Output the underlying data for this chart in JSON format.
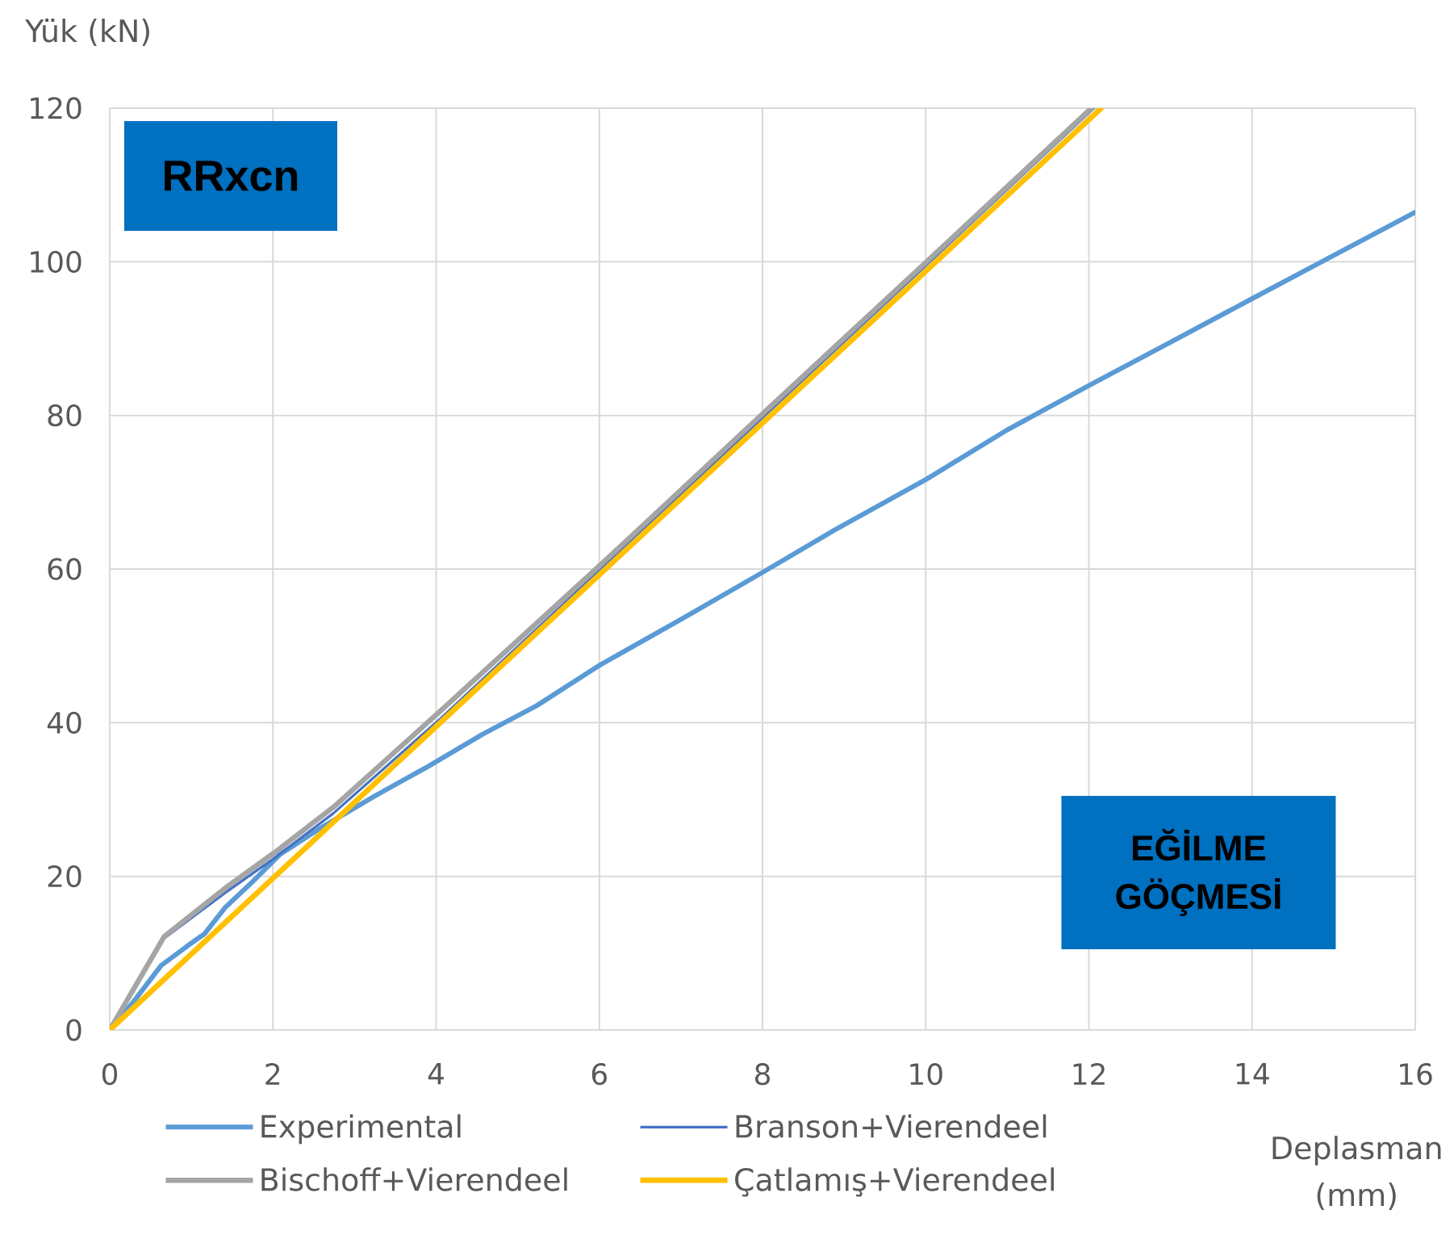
{
  "chart_data": {
    "type": "line",
    "xlabel": "Deplasman (mm)",
    "ylabel": "Yük (kN)",
    "annotations": [
      "RRxcn",
      "EĞİLME GÖÇMESİ"
    ],
    "xlim": [
      0,
      16
    ],
    "xticks": [
      0,
      2,
      4,
      6,
      8,
      10,
      12,
      14,
      16
    ],
    "ylim": [
      0,
      120
    ],
    "yticks": [
      0,
      20,
      40,
      60,
      80,
      100,
      120
    ],
    "grid": true,
    "legend": "bottom",
    "marker": "none",
    "line_style": "solid",
    "series": [
      {
        "name": "Experimental",
        "color": "#5b9bd5",
        "x": [
          0,
          0.3,
          0.63,
          0.96,
          1.16,
          1.42,
          1.75,
          2.08,
          2.57,
          3.24,
          3.9,
          4.57,
          5.23,
          5.99,
          6.96,
          7.99,
          8.87,
          10.01,
          10.98,
          12.0,
          12.96,
          14.0,
          14.87,
          15.99
        ],
        "values": [
          0,
          3.8,
          8.4,
          11.0,
          12.5,
          16.0,
          19.3,
          22.8,
          26.2,
          30.4,
          34.3,
          38.5,
          42.2,
          47.4,
          53.2,
          59.5,
          65.0,
          71.7,
          78.0,
          83.9,
          89.3,
          95.2,
          100.1,
          106.4
        ]
      },
      {
        "name": "Branson+Vierendeel",
        "color": "#4472c4",
        "x": [
          0,
          0.65,
          1.42,
          2.02,
          2.74,
          4.06,
          6.01,
          8.0,
          10.0,
          12.06
        ],
        "values": [
          0,
          11.8,
          17.9,
          22.4,
          28.2,
          40.6,
          59.9,
          79.7,
          99.5,
          120
        ]
      },
      {
        "name": "Bischoff+Vierendeel",
        "color": "#a5a5a5",
        "x": [
          0,
          0.67,
          1.42,
          2.02,
          2.74,
          4.06,
          6.01,
          8.0,
          10.0,
          12.03
        ],
        "values": [
          0,
          12.2,
          18.5,
          23.1,
          29.0,
          41.6,
          60.5,
          80.2,
          99.9,
          120
        ]
      },
      {
        "name": "Çatlamış+Vierendeel",
        "color": "#ffc000",
        "x": [
          0,
          12.15
        ],
        "values": [
          0,
          120
        ]
      }
    ]
  }
}
